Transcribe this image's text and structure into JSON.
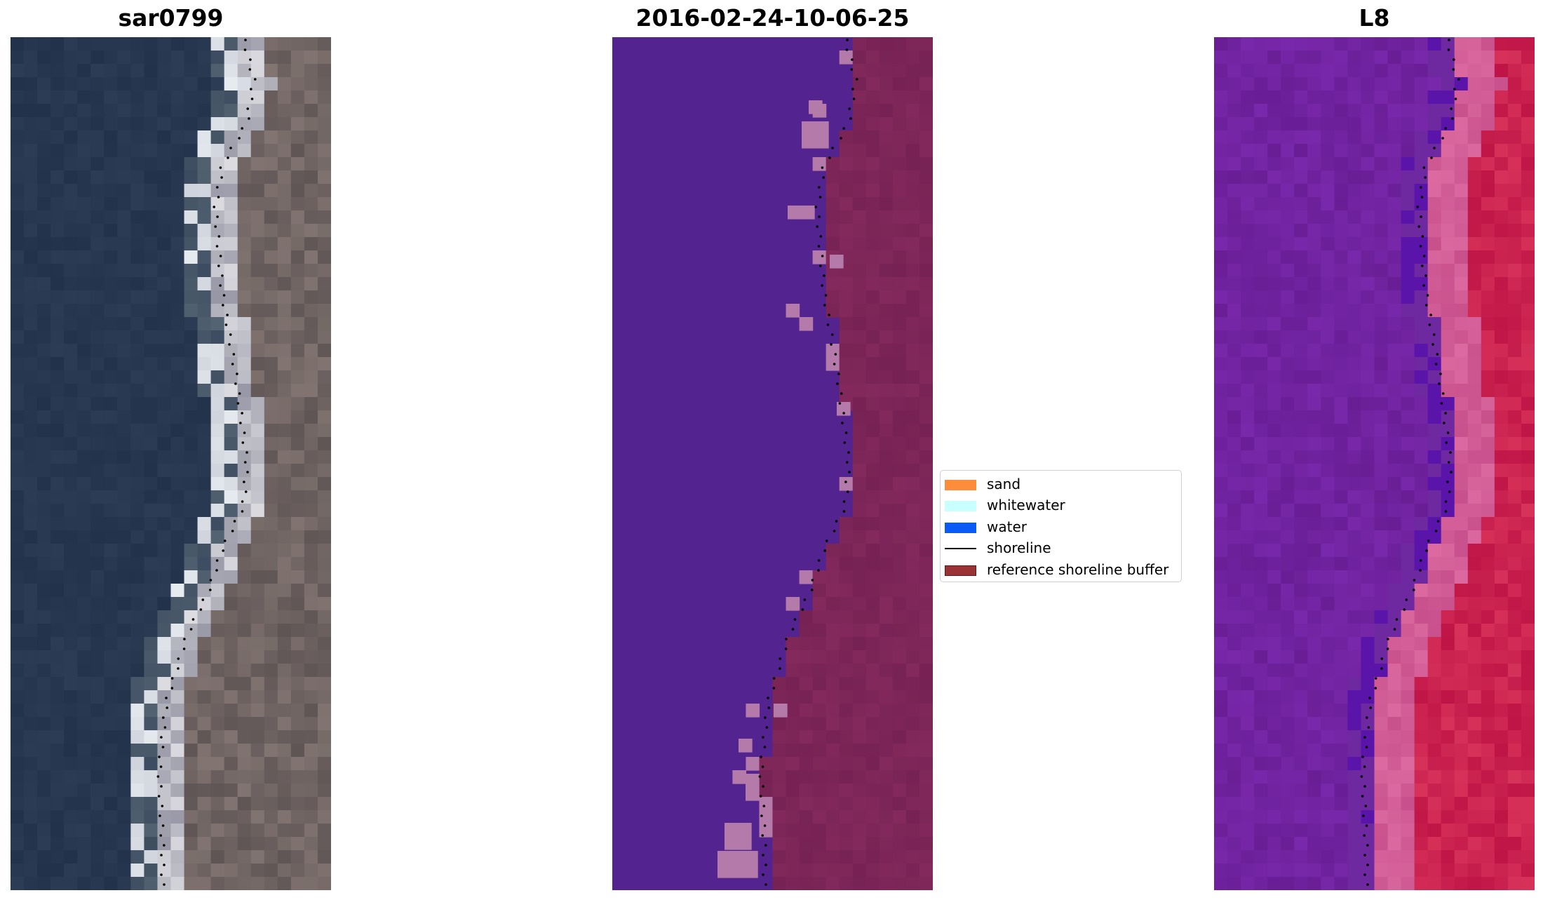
{
  "panels": [
    {
      "title": "sar0799",
      "kind": "rgb-image"
    },
    {
      "title": "2016-02-24-10-06-25",
      "kind": "classified-overlay"
    },
    {
      "title": "L8",
      "kind": "index-image"
    }
  ],
  "legend": {
    "items": [
      {
        "label": "sand",
        "color": "#ff8c3a",
        "type": "patch"
      },
      {
        "label": "whitewater",
        "color": "#c8ffff",
        "type": "patch"
      },
      {
        "label": "water",
        "color": "#0a5af5",
        "type": "patch"
      },
      {
        "label": "shoreline",
        "color": "#000000",
        "type": "line"
      },
      {
        "label": "reference shoreline buffer",
        "color": "#9b3236",
        "type": "patch",
        "edge": "#5a1a1c"
      }
    ]
  },
  "colors": {
    "sea_dark": "#253350",
    "land_brown": "#6b5f5c",
    "class_water": "#53238f",
    "class_buffer": "#7b2457",
    "class_sand": "#b47aa9",
    "l8_water": "#6e1f98",
    "l8_land": "#c2164f",
    "shoreline_dots": "#000000"
  }
}
